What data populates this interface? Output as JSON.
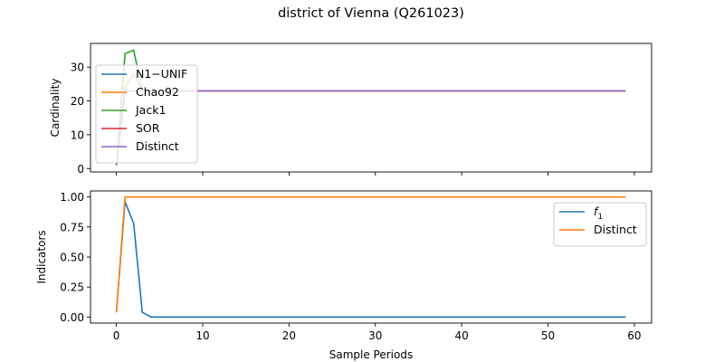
{
  "title": "district of Vienna (Q261023)",
  "chart_data": [
    {
      "type": "line",
      "ylabel": "Cardinality",
      "xlabel": "",
      "xlim": [
        -3,
        62
      ],
      "ylim": [
        -1,
        37
      ],
      "xticks": [
        0,
        10,
        20,
        30,
        40,
        50,
        60
      ],
      "yticks": [
        0,
        10,
        20,
        30
      ],
      "show_xtick_labels": false,
      "legend_position": "upper-left",
      "series": [
        {
          "name": "N1−UNIF",
          "color": "#1f77b4",
          "points": [
            [
              0,
              1
            ],
            [
              1,
              23
            ],
            [
              2,
              23
            ],
            [
              59,
              23
            ]
          ]
        },
        {
          "name": "Chao92",
          "color": "#ff7f0e",
          "points": [
            [
              0,
              1
            ],
            [
              1,
              24
            ],
            [
              2,
              28
            ],
            [
              3,
              23
            ],
            [
              59,
              23
            ]
          ]
        },
        {
          "name": "Jack1",
          "color": "#2ca02c",
          "points": [
            [
              0,
              1
            ],
            [
              1,
              34
            ],
            [
              2,
              35
            ],
            [
              3,
              23
            ],
            [
              59,
              23
            ]
          ]
        },
        {
          "name": "SOR",
          "color": "#d62728",
          "points": [
            [
              0,
              1
            ],
            [
              1,
              23
            ],
            [
              59,
              23
            ]
          ]
        },
        {
          "name": "Distinct",
          "color": "#9467bd",
          "points": [
            [
              0,
              1
            ],
            [
              1,
              23
            ],
            [
              59,
              23
            ]
          ]
        }
      ]
    },
    {
      "type": "line",
      "ylabel": "Indicators",
      "xlabel": "Sample Periods",
      "xlim": [
        -3,
        62
      ],
      "ylim": [
        -0.05,
        1.05
      ],
      "xticks": [
        0,
        10,
        20,
        30,
        40,
        50,
        60
      ],
      "yticks": [
        0.0,
        0.25,
        0.5,
        0.75,
        1.0
      ],
      "ytick_labels": [
        "0.00",
        "0.25",
        "0.50",
        "0.75",
        "1.00"
      ],
      "show_xtick_labels": true,
      "legend_position": "upper-right",
      "series": [
        {
          "name": "f1",
          "legend_base": "f",
          "legend_sub": "1",
          "color": "#1f77b4",
          "points": [
            [
              0,
              0.04
            ],
            [
              1,
              0.96
            ],
            [
              2,
              0.78
            ],
            [
              3,
              0.04
            ],
            [
              4,
              0.0
            ],
            [
              59,
              0.0
            ]
          ]
        },
        {
          "name": "Distinct",
          "color": "#ff7f0e",
          "points": [
            [
              0,
              0.04
            ],
            [
              1,
              1.0
            ],
            [
              59,
              1.0
            ]
          ]
        }
      ]
    }
  ]
}
